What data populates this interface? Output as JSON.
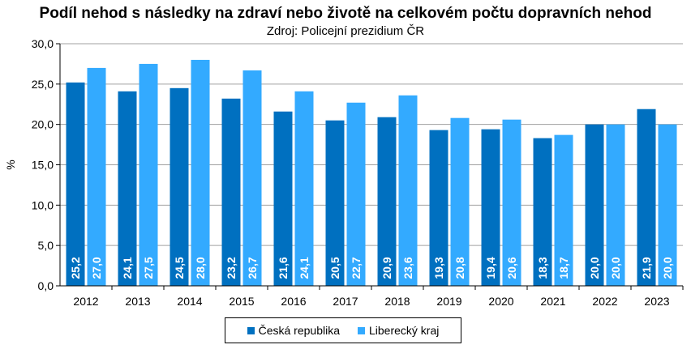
{
  "chart_data": {
    "type": "bar",
    "title": "Podíl nehod s následky na zdraví nebo životě na celkovém počtu dopravních nehod",
    "subtitle": "Zdroj: Policejní prezidium ČR",
    "ylabel": "%",
    "xlabel": "",
    "ylim": [
      0,
      30
    ],
    "yticks": [
      "0,0",
      "5,0",
      "10,0",
      "15,0",
      "20,0",
      "25,0",
      "30,0"
    ],
    "grid": true,
    "legend_position": "bottom",
    "categories": [
      "2012",
      "2013",
      "2014",
      "2015",
      "2016",
      "2017",
      "2018",
      "2019",
      "2020",
      "2021",
      "2022",
      "2023"
    ],
    "series": [
      {
        "name": "Česká republika",
        "color": "#0070C0",
        "values": [
          25.2,
          24.1,
          24.5,
          23.2,
          21.6,
          20.5,
          20.9,
          19.3,
          19.4,
          18.3,
          20.0,
          21.9
        ],
        "labels": [
          "25,2",
          "24,1",
          "24,5",
          "23,2",
          "21,6",
          "20,5",
          "20,9",
          "19,3",
          "19,4",
          "18,3",
          "20,0",
          "21,9"
        ]
      },
      {
        "name": "Liberecký kraj",
        "color": "#33AAFF",
        "values": [
          27.0,
          27.5,
          28.0,
          26.7,
          24.1,
          22.7,
          23.6,
          20.8,
          20.6,
          18.7,
          20.0,
          20.0
        ],
        "labels": [
          "27,0",
          "27,5",
          "28,0",
          "26,7",
          "24,1",
          "22,7",
          "23,6",
          "20,8",
          "20,6",
          "18,7",
          "20,0",
          "20,0"
        ]
      }
    ]
  }
}
